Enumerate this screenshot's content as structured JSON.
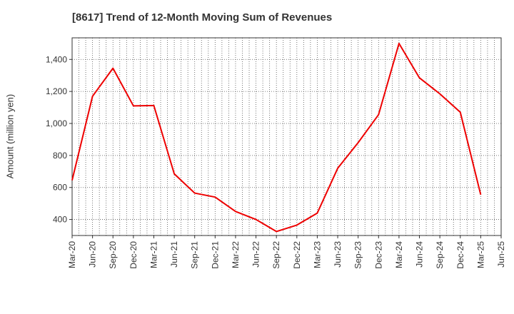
{
  "chart_data": {
    "type": "line",
    "title": "[8617]  Trend of 12-Month Moving Sum of Revenues",
    "xlabel": "",
    "ylabel": "Amount (million yen)",
    "x_ticks": [
      "Mar-20",
      "Jun-20",
      "Sep-20",
      "Dec-20",
      "Mar-21",
      "Jun-21",
      "Sep-21",
      "Dec-21",
      "Mar-22",
      "Jun-22",
      "Sep-22",
      "Dec-22",
      "Mar-23",
      "Jun-23",
      "Sep-23",
      "Dec-23",
      "Mar-24",
      "Jun-24",
      "Sep-24",
      "Dec-24",
      "Mar-25",
      "Jun-25"
    ],
    "y_ticks": [
      400,
      600,
      800,
      1000,
      1200,
      1400
    ],
    "y_tick_labels": [
      "400",
      "600",
      "800",
      "1,000",
      "1,200",
      "1,400"
    ],
    "ylim": [
      300,
      1535
    ],
    "grid": true,
    "series": [
      {
        "color": "#ee0000",
        "x": [
          "Mar-20",
          "Jun-20",
          "Sep-20",
          "Dec-20",
          "Mar-21",
          "Jun-21",
          "Sep-21",
          "Dec-21",
          "Mar-22",
          "Jun-22",
          "Sep-22",
          "Dec-22",
          "Mar-23",
          "Jun-23",
          "Sep-23",
          "Dec-23",
          "Mar-24",
          "Jun-24",
          "Sep-24",
          "Dec-24",
          "Mar-25"
        ],
        "values": [
          645,
          1170,
          1345,
          1110,
          1112,
          685,
          565,
          540,
          450,
          400,
          325,
          365,
          440,
          720,
          880,
          1055,
          1500,
          1285,
          1185,
          1070,
          555
        ]
      }
    ]
  }
}
